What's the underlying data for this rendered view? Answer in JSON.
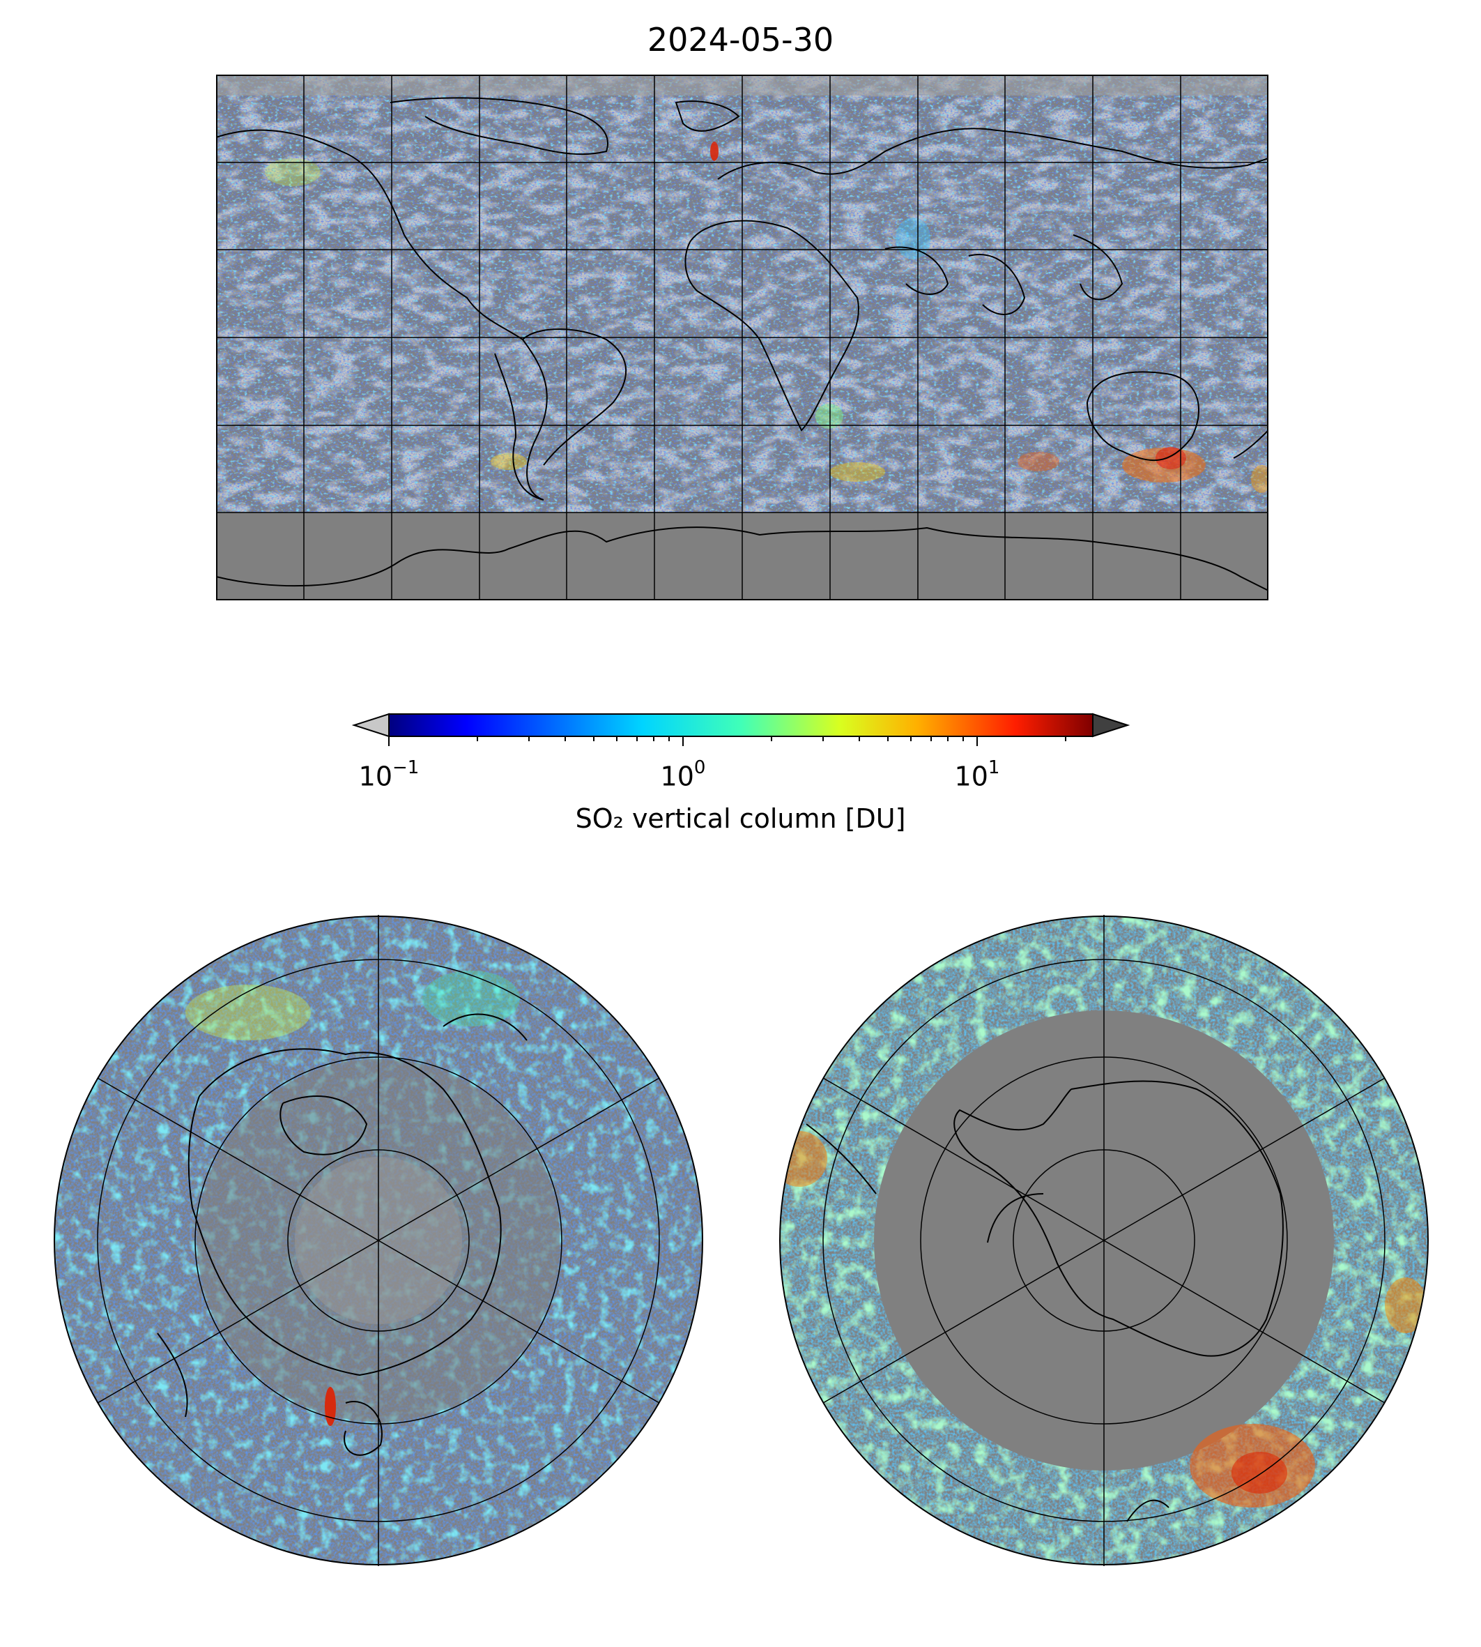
{
  "figure": {
    "title": "2024-05-30"
  },
  "colorbar": {
    "label": "SO₂ vertical column [DU]",
    "scale": "log",
    "range": [
      0.1,
      25
    ],
    "colormap": "jet",
    "under_color": "#c8c8c8",
    "over_color": "#404040",
    "ticks": [
      {
        "base": "10",
        "exp": "−1",
        "value": 0.1
      },
      {
        "base": "10",
        "exp": "0",
        "value": 1
      },
      {
        "base": "10",
        "exp": "1",
        "value": 10
      }
    ]
  },
  "maps": [
    {
      "name": "world",
      "projection": "plate carree",
      "land_color": "#808080",
      "grid": true
    },
    {
      "name": "north-polar",
      "projection": "north polar stereographic",
      "grid": true
    },
    {
      "name": "south-polar",
      "projection": "south polar stereographic",
      "grid": true
    }
  ]
}
